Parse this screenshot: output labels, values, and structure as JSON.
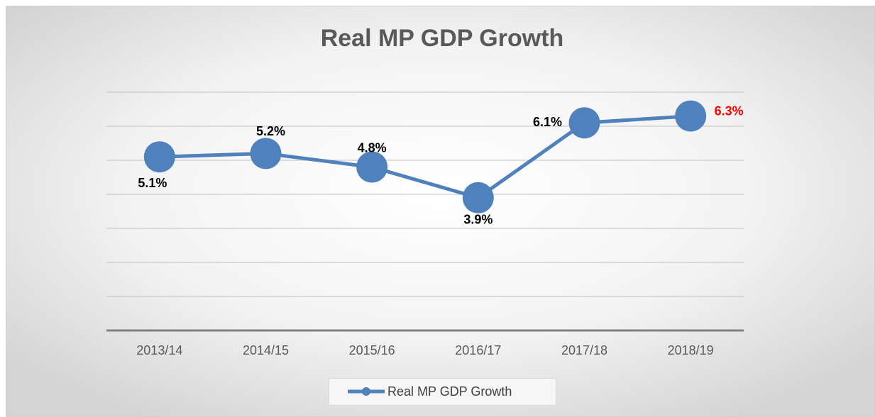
{
  "chart_data": {
    "type": "line",
    "title": "Real MP GDP Growth",
    "categories": [
      "2013/14",
      "2014/15",
      "2015/16",
      "2016/17",
      "2017/18",
      "2018/19"
    ],
    "series": [
      {
        "name": "Real MP GDP Growth",
        "color": "#4f81bd",
        "values": [
          5.1,
          5.2,
          4.8,
          3.9,
          6.1,
          6.3
        ],
        "value_labels": [
          "5.1%",
          "5.2%",
          "4.8%",
          "3.9%",
          "6.1%",
          "6.3%"
        ],
        "value_label_colors": [
          "#000000",
          "#000000",
          "#000000",
          "#000000",
          "#000000",
          "#ff0000"
        ]
      }
    ],
    "ylim": [
      0,
      7
    ],
    "yticks": [
      0,
      1,
      2,
      3,
      4,
      5,
      6,
      7
    ],
    "grid": true,
    "legend": "bottom"
  }
}
